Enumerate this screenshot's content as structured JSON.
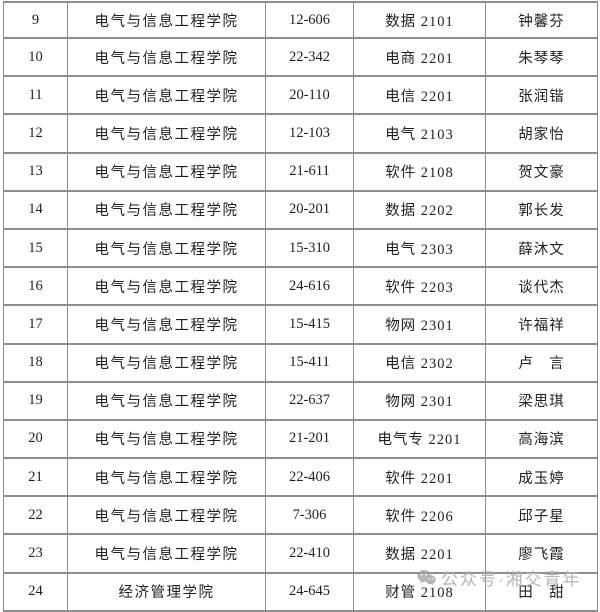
{
  "table": {
    "fields": [
      "no",
      "college",
      "room",
      "class_name",
      "student"
    ],
    "rows": [
      {
        "no": "9",
        "college": "电气与信息工程学院",
        "room": "12-606",
        "class_name": "数据 2101",
        "student": "钟馨芬"
      },
      {
        "no": "10",
        "college": "电气与信息工程学院",
        "room": "22-342",
        "class_name": "电商 2201",
        "student": "朱琴琴"
      },
      {
        "no": "11",
        "college": "电气与信息工程学院",
        "room": "20-110",
        "class_name": "电信 2201",
        "student": "张润锴"
      },
      {
        "no": "12",
        "college": "电气与信息工程学院",
        "room": "12-103",
        "class_name": "电气 2103",
        "student": "胡家怡"
      },
      {
        "no": "13",
        "college": "电气与信息工程学院",
        "room": "21-611",
        "class_name": "软件 2108",
        "student": "贺文豪"
      },
      {
        "no": "14",
        "college": "电气与信息工程学院",
        "room": "20-201",
        "class_name": "数据 2202",
        "student": "郭长发"
      },
      {
        "no": "15",
        "college": "电气与信息工程学院",
        "room": "15-310",
        "class_name": "电气 2303",
        "student": "薛沐文"
      },
      {
        "no": "16",
        "college": "电气与信息工程学院",
        "room": "24-616",
        "class_name": "软件 2203",
        "student": "谈代杰"
      },
      {
        "no": "17",
        "college": "电气与信息工程学院",
        "room": "15-415",
        "class_name": "物网 2301",
        "student": "许福祥"
      },
      {
        "no": "18",
        "college": "电气与信息工程学院",
        "room": "15-411",
        "class_name": "电信 2302",
        "student": "卢　言"
      },
      {
        "no": "19",
        "college": "电气与信息工程学院",
        "room": "22-637",
        "class_name": "物网 2301",
        "student": "梁思琪"
      },
      {
        "no": "20",
        "college": "电气与信息工程学院",
        "room": "21-201",
        "class_name": "电气专 2201",
        "student": "高海滨"
      },
      {
        "no": "21",
        "college": "电气与信息工程学院",
        "room": "22-406",
        "class_name": "软件 2201",
        "student": "成玉婷"
      },
      {
        "no": "22",
        "college": "电气与信息工程学院",
        "room": "7-306",
        "class_name": "软件 2206",
        "student": "邱子星"
      },
      {
        "no": "23",
        "college": "电气与信息工程学院",
        "room": "22-410",
        "class_name": "数据 2201",
        "student": "廖飞霞"
      },
      {
        "no": "24",
        "college": "经济管理学院",
        "room": "24-645",
        "class_name": "财管 2108",
        "student": "田　甜"
      }
    ]
  },
  "watermark": {
    "text": "公众号·湘交青年",
    "icon": "wechat-icon",
    "text_color": "#b5b5b5"
  },
  "colors": {
    "border": "#8d8d8d",
    "text": "#1f1f1f",
    "background": "#ffffff"
  }
}
